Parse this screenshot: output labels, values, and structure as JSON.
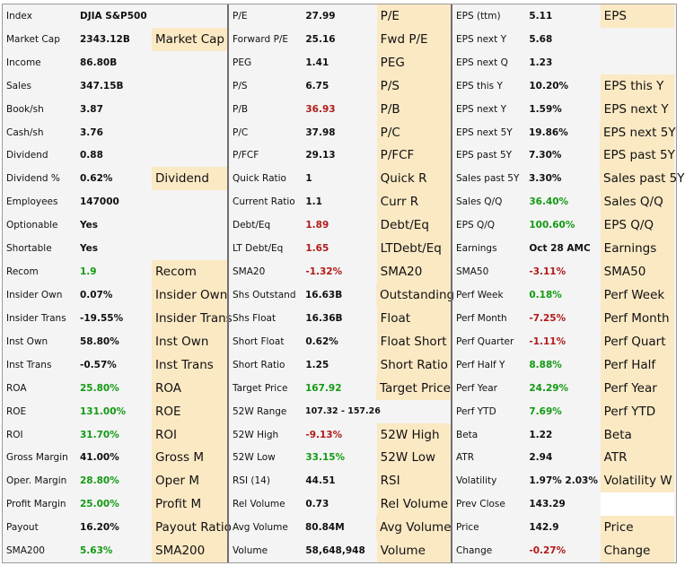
{
  "table": {
    "groups": [
      [
        {
          "label": "Index",
          "value": "DJIA S&P500",
          "value_color": "",
          "tag": ""
        },
        {
          "label": "Market Cap",
          "value": "2343.12B",
          "value_color": "",
          "tag": "Market Cap"
        },
        {
          "label": "Income",
          "value": "86.80B",
          "value_color": "",
          "tag": ""
        },
        {
          "label": "Sales",
          "value": "347.15B",
          "value_color": "",
          "tag": ""
        },
        {
          "label": "Book/sh",
          "value": "3.87",
          "value_color": "",
          "tag": ""
        },
        {
          "label": "Cash/sh",
          "value": "3.76",
          "value_color": "",
          "tag": ""
        },
        {
          "label": "Dividend",
          "value": "0.88",
          "value_color": "",
          "tag": ""
        },
        {
          "label": "Dividend %",
          "value": "0.62%",
          "value_color": "",
          "tag": "Dividend"
        },
        {
          "label": "Employees",
          "value": "147000",
          "value_color": "",
          "tag": ""
        },
        {
          "label": "Optionable",
          "value": "Yes",
          "value_color": "",
          "tag": ""
        },
        {
          "label": "Shortable",
          "value": "Yes",
          "value_color": "",
          "tag": ""
        },
        {
          "label": "Recom",
          "value": "1.9",
          "value_color": "green",
          "tag": "Recom"
        },
        {
          "label": "Insider Own",
          "value": "0.07%",
          "value_color": "",
          "tag": "Insider Own"
        },
        {
          "label": "Insider Trans",
          "value": "-19.55%",
          "value_color": "",
          "tag": "Insider Trans"
        },
        {
          "label": "Inst Own",
          "value": "58.80%",
          "value_color": "",
          "tag": "Inst Own"
        },
        {
          "label": "Inst Trans",
          "value": "-0.57%",
          "value_color": "",
          "tag": "Inst Trans"
        },
        {
          "label": "ROA",
          "value": "25.80%",
          "value_color": "green",
          "tag": "ROA"
        },
        {
          "label": "ROE",
          "value": "131.00%",
          "value_color": "green",
          "tag": "ROE"
        },
        {
          "label": "ROI",
          "value": "31.70%",
          "value_color": "green",
          "tag": "ROI"
        },
        {
          "label": "Gross Margin",
          "value": "41.00%",
          "value_color": "",
          "tag": "Gross M"
        },
        {
          "label": "Oper. Margin",
          "value": "28.80%",
          "value_color": "green",
          "tag": "Oper M"
        },
        {
          "label": "Profit Margin",
          "value": "25.00%",
          "value_color": "green",
          "tag": "Profit M"
        },
        {
          "label": "Payout",
          "value": "16.20%",
          "value_color": "",
          "tag": "Payout Ratio"
        },
        {
          "label": "SMA200",
          "value": "5.63%",
          "value_color": "green",
          "tag": "SMA200"
        }
      ],
      [
        {
          "label": "P/E",
          "value": "27.99",
          "value_color": "",
          "tag": "P/E"
        },
        {
          "label": "Forward P/E",
          "value": "25.16",
          "value_color": "",
          "tag": "Fwd P/E"
        },
        {
          "label": "PEG",
          "value": "1.41",
          "value_color": "",
          "tag": "PEG"
        },
        {
          "label": "P/S",
          "value": "6.75",
          "value_color": "",
          "tag": "P/S"
        },
        {
          "label": "P/B",
          "value": "36.93",
          "value_color": "red",
          "tag": "P/B"
        },
        {
          "label": "P/C",
          "value": "37.98",
          "value_color": "",
          "tag": "P/C"
        },
        {
          "label": "P/FCF",
          "value": "29.13",
          "value_color": "",
          "tag": "P/FCF"
        },
        {
          "label": "Quick Ratio",
          "value": "1",
          "value_color": "",
          "tag": "Quick R"
        },
        {
          "label": "Current Ratio",
          "value": "1.1",
          "value_color": "",
          "tag": "Curr R"
        },
        {
          "label": "Debt/Eq",
          "value": "1.89",
          "value_color": "red",
          "tag": "Debt/Eq"
        },
        {
          "label": "LT Debt/Eq",
          "value": "1.65",
          "value_color": "red",
          "tag": "LTDebt/Eq"
        },
        {
          "label": "SMA20",
          "value": "-1.32%",
          "value_color": "red",
          "tag": "SMA20"
        },
        {
          "label": "Shs Outstand",
          "value": "16.63B",
          "value_color": "",
          "tag": "Outstanding"
        },
        {
          "label": "Shs Float",
          "value": "16.36B",
          "value_color": "",
          "tag": "Float"
        },
        {
          "label": "Short Float",
          "value": "0.62%",
          "value_color": "",
          "tag": "Float Short"
        },
        {
          "label": "Short Ratio",
          "value": "1.25",
          "value_color": "",
          "tag": "Short Ratio"
        },
        {
          "label": "Target Price",
          "value": "167.92",
          "value_color": "green",
          "tag": "Target Price"
        },
        {
          "label": "52W Range",
          "value": "107.32 - 157.26",
          "value_color": "",
          "tag": ""
        },
        {
          "label": "52W High",
          "value": "-9.13%",
          "value_color": "red",
          "tag": "52W High"
        },
        {
          "label": "52W Low",
          "value": "33.15%",
          "value_color": "green",
          "tag": "52W Low"
        },
        {
          "label": "RSI (14)",
          "value": "44.51",
          "value_color": "",
          "tag": "RSI"
        },
        {
          "label": "Rel Volume",
          "value": "0.73",
          "value_color": "",
          "tag": "Rel Volume"
        },
        {
          "label": "Avg Volume",
          "value": "80.84M",
          "value_color": "",
          "tag": "Avg Volume"
        },
        {
          "label": "Volume",
          "value": "58,648,948",
          "value_color": "",
          "tag": "Volume"
        }
      ],
      [
        {
          "label": "EPS (ttm)",
          "value": "5.11",
          "value_color": "",
          "tag": "EPS"
        },
        {
          "label": "EPS next Y",
          "value": "5.68",
          "value_color": "",
          "tag": ""
        },
        {
          "label": "EPS next Q",
          "value": "1.23",
          "value_color": "",
          "tag": ""
        },
        {
          "label": "EPS this Y",
          "value": "10.20%",
          "value_color": "",
          "tag": "EPS this Y"
        },
        {
          "label": "EPS next Y",
          "value": "1.59%",
          "value_color": "",
          "tag": "EPS next Y"
        },
        {
          "label": "EPS next 5Y",
          "value": "19.86%",
          "value_color": "",
          "tag": "EPS next 5Y"
        },
        {
          "label": "EPS past 5Y",
          "value": "7.30%",
          "value_color": "",
          "tag": "EPS past 5Y"
        },
        {
          "label": "Sales past 5Y",
          "value": "3.30%",
          "value_color": "",
          "tag": "Sales past 5Y"
        },
        {
          "label": "Sales Q/Q",
          "value": "36.40%",
          "value_color": "green",
          "tag": "Sales Q/Q"
        },
        {
          "label": "EPS Q/Q",
          "value": "100.60%",
          "value_color": "green",
          "tag": "EPS Q/Q"
        },
        {
          "label": "Earnings",
          "value": "Oct 28 AMC",
          "value_color": "",
          "tag": "Earnings"
        },
        {
          "label": "SMA50",
          "value": "-3.11%",
          "value_color": "red",
          "tag": "SMA50"
        },
        {
          "label": "Perf Week",
          "value": "0.18%",
          "value_color": "green",
          "tag": "Perf Week"
        },
        {
          "label": "Perf Month",
          "value": "-7.25%",
          "value_color": "red",
          "tag": "Perf Month"
        },
        {
          "label": "Perf Quarter",
          "value": "-1.11%",
          "value_color": "red",
          "tag": "Perf Quart"
        },
        {
          "label": "Perf Half Y",
          "value": "8.88%",
          "value_color": "green",
          "tag": "Perf Half"
        },
        {
          "label": "Perf Year",
          "value": "24.29%",
          "value_color": "green",
          "tag": "Perf Year"
        },
        {
          "label": "Perf YTD",
          "value": "7.69%",
          "value_color": "green",
          "tag": "Perf YTD"
        },
        {
          "label": "Beta",
          "value": "1.22",
          "value_color": "",
          "tag": "Beta"
        },
        {
          "label": "ATR",
          "value": "2.94",
          "value_color": "",
          "tag": "ATR"
        },
        {
          "label": "Volatility",
          "value": "1.97% 2.03%",
          "value_color": "",
          "tag": "Volatility W"
        },
        {
          "label": "Prev Close",
          "value": "143.29",
          "value_color": "",
          "tag": "",
          "tag_style": "blank"
        },
        {
          "label": "Price",
          "value": "142.9",
          "value_color": "",
          "tag": "Price"
        },
        {
          "label": "Change",
          "value": "-0.27%",
          "value_color": "red",
          "tag": "Change"
        }
      ]
    ]
  },
  "colors": {
    "green": "#139a13",
    "red": "#b21a1a",
    "tag_background": "#fbe9c4",
    "table_background": "#f4f4f4",
    "divider": "#6f6f6f"
  }
}
